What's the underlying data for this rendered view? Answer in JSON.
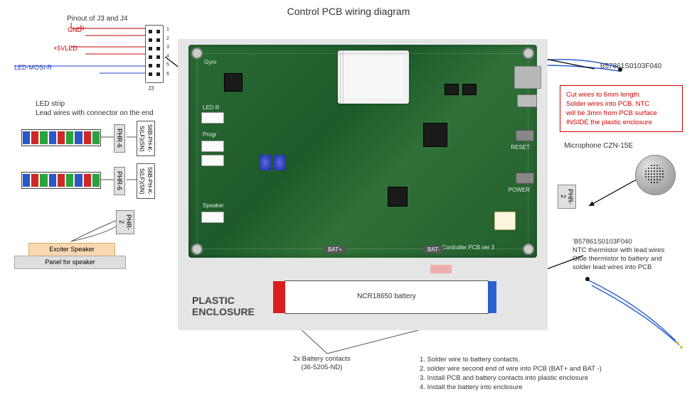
{
  "title": "Control PCB wiring diagram",
  "pinout": {
    "header_label": "Pinout of J3 and J4",
    "signals": {
      "gnd": "GND",
      "v5": "+5VLED",
      "mosi": "LED-MOSI-R"
    },
    "connector_ref": "J3",
    "pin_numbers": [
      "1",
      "2",
      "3",
      "4",
      "5",
      "6"
    ]
  },
  "led": {
    "title_line1": "LED strip",
    "title_line2": "Lead wires with connector on the end",
    "colors": [
      "#2c57c7",
      "#d02727",
      "#2aa33a",
      "#2c57c7",
      "#d02727",
      "#2aa33a",
      "#2c57c7",
      "#d02727",
      "#2aa33a"
    ]
  },
  "connectors": {
    "phr6": "PHR-6",
    "phr2": "PHR-2",
    "s6b": "S6B-PH-K-S(LF)(SN)"
  },
  "speaker": {
    "exciter": "Exciter Speaker",
    "panel": "Panel for speaker"
  },
  "enclosure": {
    "label_line1": "PLASTIC",
    "label_line2": "ENCLOSURE"
  },
  "pcb": {
    "silks": {
      "gyro": "Gyro",
      "ledr": "LED R",
      "prog": "Progr",
      "reset": "RESET",
      "power": "POWER",
      "speaker": "Speaker",
      "ver": "Controller PCB ver 3"
    },
    "bat_plus": "BAT+",
    "bat_minus": "BAT-"
  },
  "battery": {
    "name": "NCR18650 battery",
    "contacts": "2x Battery contacts\n(36-5205-ND)"
  },
  "thermistor_top": {
    "part": "B57861S0103F040"
  },
  "callout_red": {
    "l1": "Cut wires to 6mm length.",
    "l2": "Solder wires into PCB. NTC",
    "l3": "will be 3mm from PCB surface",
    "l4": "INSIDE the plastic enclosure"
  },
  "mic": {
    "label": "Microphone CZN-15E"
  },
  "thermistor": {
    "l1": "'B57861S0103F040",
    "l2": "NTC thermistor with lead wires",
    "l3": "Glue thermistor to battery and",
    "l4": "solder lead wires into PCB"
  },
  "notes": {
    "n1": "1. Solder wire to battery contacts.",
    "n2": "2. solder wire second end of wire into PCB (BAT+ and BAT -)",
    "n3": "3. Install PCB and battery contacts into plastic enclosure",
    "n4": "4. Install the battery into enclosure"
  },
  "colors": {
    "pcb": "#2a6a33",
    "enclosure": "#e5e5e5",
    "red": "#d61f1f",
    "blue": "#2a5fcf"
  }
}
